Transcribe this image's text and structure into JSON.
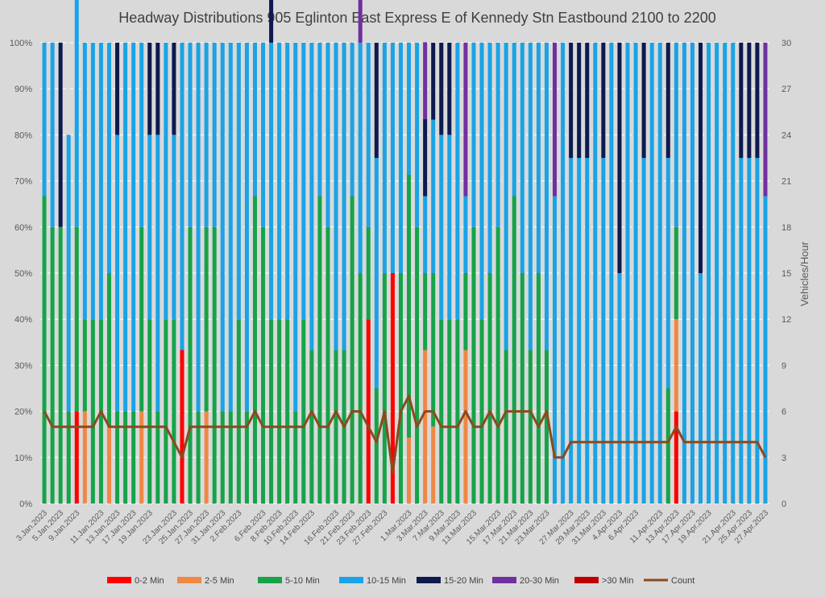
{
  "chart_data": {
    "type": "bar",
    "title": "Headway Distributions 905 Eglinton East Express  E of Kennedy Stn Eastbound 2100 to 2200",
    "y2label": "Vehicles/Hour",
    "ylim": [
      0,
      1
    ],
    "y2lim": [
      0,
      30
    ],
    "y_ticks": [
      "0%",
      "10%",
      "20%",
      "30%",
      "40%",
      "50%",
      "60%",
      "70%",
      "80%",
      "90%",
      "100%"
    ],
    "y2_ticks": [
      "0",
      "3",
      "6",
      "9",
      "12",
      "15",
      "18",
      "21",
      "24",
      "27",
      "30"
    ],
    "x_tick_labels": [
      "3.Jan.2023",
      "5.Jan.2023",
      "9.Jan.2023",
      "11.Jan.2023",
      "13.Jan.2023",
      "17.Jan.2023",
      "19.Jan.2023",
      "23.Jan.2023",
      "25.Jan.2023",
      "27.Jan.2023",
      "31.Jan.2023",
      "2.Feb.2023",
      "6.Feb.2023",
      "8.Feb.2023",
      "10.Feb.2023",
      "14.Feb.2023",
      "16.Feb.2023",
      "21.Feb.2023",
      "23.Feb.2023",
      "27.Feb.2023",
      "1.Mar.2023",
      "3.Mar.2023",
      "7.Mar.2023",
      "9.Mar.2023",
      "13.Mar.2023",
      "15.Mar.2023",
      "17.Mar.2023",
      "21.Mar.2023",
      "23.Mar.2023",
      "27.Mar.2023",
      "29.Mar.2023",
      "31.Mar.2023",
      "4.Apr.2023",
      "6.Apr.2023",
      "11.Apr.2023",
      "13.Apr.2023",
      "17.Apr.2023",
      "19.Apr.2023",
      "21.Apr.2023",
      "25.Apr.2023",
      "27.Apr.2023"
    ],
    "legend": {
      "position": "bottom",
      "entries": [
        {
          "label": "0-2 Min",
          "color": "#ff0000",
          "kind": "bar"
        },
        {
          "label": "2-5 Min",
          "color": "#ee8844",
          "kind": "bar"
        },
        {
          "label": "5-10 Min",
          "color": "#16a34a",
          "kind": "bar"
        },
        {
          "label": "10-15 Min",
          "color": "#1aa3e6",
          "kind": "bar"
        },
        {
          "label": "15-20 Min",
          "color": "#0d1a4f",
          "kind": "bar"
        },
        {
          "label": "20-30 Min",
          "color": "#7030a0",
          "kind": "bar"
        },
        {
          "label": ">30 Min",
          "color": "#c00000",
          "kind": "bar"
        },
        {
          "label": "Count",
          "color": "#8b4a1e",
          "kind": "line"
        }
      ]
    },
    "grid": true,
    "counts": [
      6,
      5,
      5,
      5,
      5,
      5,
      5,
      6,
      5,
      5,
      5,
      5,
      5,
      5,
      5,
      5,
      4,
      3,
      5,
      5,
      5,
      5,
      5,
      5,
      5,
      5,
      6,
      5,
      5,
      5,
      5,
      5,
      5,
      6,
      5,
      5,
      6,
      5,
      6,
      6,
      5,
      4,
      6,
      2,
      6,
      7,
      5,
      6,
      6,
      5,
      5,
      5,
      6,
      5,
      5,
      6,
      5,
      6,
      6,
      6,
      6,
      5,
      6,
      3,
      3,
      4,
      4,
      4,
      4,
      4,
      4,
      4,
      4,
      4,
      4,
      4,
      4,
      4,
      5,
      4,
      4,
      4,
      4,
      4,
      4,
      4,
      4,
      4,
      4,
      3
    ],
    "buckets": {
      "b0_2": [
        0,
        0,
        0,
        0,
        0.2,
        0,
        0,
        0,
        0,
        0,
        0,
        0,
        0,
        0,
        0,
        0,
        0,
        0.333,
        0,
        0,
        0,
        0,
        0,
        0,
        0,
        0,
        0,
        0,
        0,
        0,
        0,
        0,
        0,
        0,
        0,
        0,
        0,
        0,
        0,
        0,
        0.4,
        0,
        0,
        0.5,
        0,
        0,
        0,
        0,
        0,
        0,
        0,
        0,
        0,
        0,
        0,
        0,
        0,
        0,
        0,
        0,
        0,
        0,
        0,
        0,
        0,
        0,
        0,
        0,
        0,
        0,
        0,
        0,
        0,
        0,
        0,
        0,
        0,
        0,
        0.2,
        0,
        0,
        0,
        0,
        0,
        0,
        0,
        0,
        0,
        0,
        0
      ],
      "b2_5": [
        0,
        0,
        0,
        0,
        0,
        0.2,
        0,
        0,
        0.167,
        0,
        0,
        0,
        0.2,
        0,
        0,
        0,
        0,
        0,
        0,
        0,
        0.2,
        0,
        0,
        0,
        0,
        0,
        0,
        0,
        0,
        0,
        0,
        0,
        0,
        0,
        0,
        0,
        0,
        0,
        0,
        0,
        0,
        0,
        0,
        0,
        0,
        0.143,
        0,
        0.333,
        0.167,
        0,
        0,
        0,
        0.333,
        0,
        0,
        0,
        0,
        0,
        0,
        0,
        0,
        0,
        0,
        0,
        0,
        0,
        0,
        0,
        0,
        0,
        0,
        0,
        0,
        0,
        0,
        0,
        0,
        0,
        0.2,
        0,
        0,
        0,
        0,
        0,
        0,
        0,
        0,
        0,
        0,
        0
      ],
      "b5_10": [
        0.667,
        0.6,
        0.6,
        0.2,
        0.4,
        0.2,
        0.4,
        0.4,
        0.333,
        0.2,
        0.2,
        0.2,
        0.4,
        0.4,
        0.2,
        0.4,
        0.4,
        0,
        0.6,
        0.2,
        0.4,
        0.6,
        0.2,
        0.2,
        0.4,
        0.2,
        0.667,
        0.6,
        0.4,
        0.4,
        0.4,
        0.2,
        0.4,
        0.333,
        0.667,
        0.6,
        0.333,
        0.333,
        0.667,
        0.5,
        0.2,
        0.25,
        0.5,
        0,
        0.5,
        0.571,
        0.6,
        0.167,
        0.333,
        0.4,
        0.4,
        0.4,
        0.167,
        0.6,
        0.4,
        0.5,
        0.6,
        0.333,
        0.667,
        0.5,
        0.333,
        0.5,
        0.333,
        0,
        0,
        0,
        0,
        0,
        0,
        0,
        0,
        0,
        0,
        0,
        0,
        0,
        0,
        0.25,
        0.2,
        0,
        0,
        0,
        0,
        0,
        0,
        0,
        0,
        0,
        0,
        0
      ],
      "b10_15": [
        0.333,
        0.4,
        0,
        0.6,
        0.6,
        0.6,
        0.6,
        0.6,
        0.5,
        0.6,
        0.8,
        0.8,
        0.4,
        0.4,
        0.6,
        0.6,
        0.4,
        0.667,
        0.4,
        0.8,
        0.4,
        0.4,
        0.8,
        0.8,
        0.6,
        0.8,
        0.333,
        0.4,
        0.6,
        0.6,
        0.6,
        0.8,
        0.6,
        0.667,
        0.333,
        0.4,
        0.667,
        0.667,
        0.333,
        0.5,
        0.4,
        0.5,
        0.5,
        0.5,
        0.5,
        0.286,
        0.4,
        0.167,
        0.333,
        0.4,
        0.4,
        0.6,
        0.167,
        0.4,
        0.6,
        0.5,
        0.4,
        0.667,
        0.333,
        0.5,
        0.667,
        0.5,
        0.667,
        0.667,
        1,
        0.75,
        0.75,
        0.75,
        1,
        0.75,
        1,
        0.5,
        1,
        1,
        0.75,
        1,
        1,
        0.5,
        0.4,
        1,
        1,
        0.5,
        1,
        1,
        1,
        1,
        0.75,
        0.75,
        0.75,
        0.667
      ],
      "b15_20": [
        0,
        0,
        0.4,
        0,
        0.2,
        0,
        0,
        0,
        0,
        0.2,
        0,
        0,
        0,
        0.2,
        0.2,
        0,
        0.2,
        0,
        0,
        0,
        0,
        0,
        0,
        0,
        0,
        0,
        0,
        0,
        0.4,
        0,
        0,
        0,
        0,
        0,
        0,
        0,
        0,
        0,
        0,
        0,
        0,
        0.25,
        0,
        0,
        0,
        0,
        0,
        0.167,
        0.167,
        0.2,
        0.2,
        0,
        0,
        0,
        0,
        0,
        0,
        0,
        0,
        0,
        0,
        0,
        0,
        0,
        0,
        0.25,
        0.25,
        0.25,
        0,
        0.25,
        0,
        0.5,
        0,
        0,
        0.25,
        0,
        0,
        0.25,
        0,
        0,
        0,
        0.5,
        0,
        0,
        0,
        0,
        0.25,
        0.25,
        0.25,
        0
      ],
      "b20_30": [
        0,
        0,
        0,
        0,
        0,
        0,
        0,
        0,
        0,
        0,
        0,
        0,
        0,
        0,
        0,
        0,
        0,
        0,
        0,
        0,
        0,
        0,
        0,
        0,
        0,
        0,
        0,
        0,
        0,
        0,
        0,
        0,
        0,
        0,
        0,
        0,
        0,
        0,
        0,
        0.2,
        0,
        0,
        0,
        0,
        0,
        0,
        0,
        0.167,
        0,
        0,
        0,
        0,
        0.333,
        0,
        0,
        0,
        0,
        0,
        0,
        0,
        0,
        0,
        0,
        0.333,
        0,
        0,
        0,
        0,
        0,
        0,
        0,
        0,
        0,
        0,
        0,
        0,
        0,
        0,
        0,
        0,
        0,
        0,
        0,
        0,
        0,
        0,
        0,
        0,
        0,
        0.333
      ],
      "b30p": [
        0,
        0,
        0,
        0,
        0,
        0,
        0,
        0,
        0,
        0,
        0,
        0,
        0,
        0,
        0,
        0,
        0,
        0,
        0,
        0,
        0,
        0,
        0,
        0,
        0,
        0,
        0,
        0,
        0,
        0,
        0,
        0,
        0,
        0,
        0,
        0,
        0,
        0,
        0,
        0,
        0,
        0,
        0,
        0,
        0,
        0,
        0,
        0,
        0,
        0,
        0,
        0,
        0,
        0,
        0,
        0,
        0,
        0,
        0,
        0,
        0,
        0,
        0,
        0,
        0,
        0,
        0,
        0,
        0,
        0,
        0,
        0,
        0,
        0,
        0,
        0,
        0,
        0,
        0,
        0,
        0,
        0,
        0,
        0,
        0,
        0,
        0,
        0,
        0,
        0
      ]
    }
  }
}
